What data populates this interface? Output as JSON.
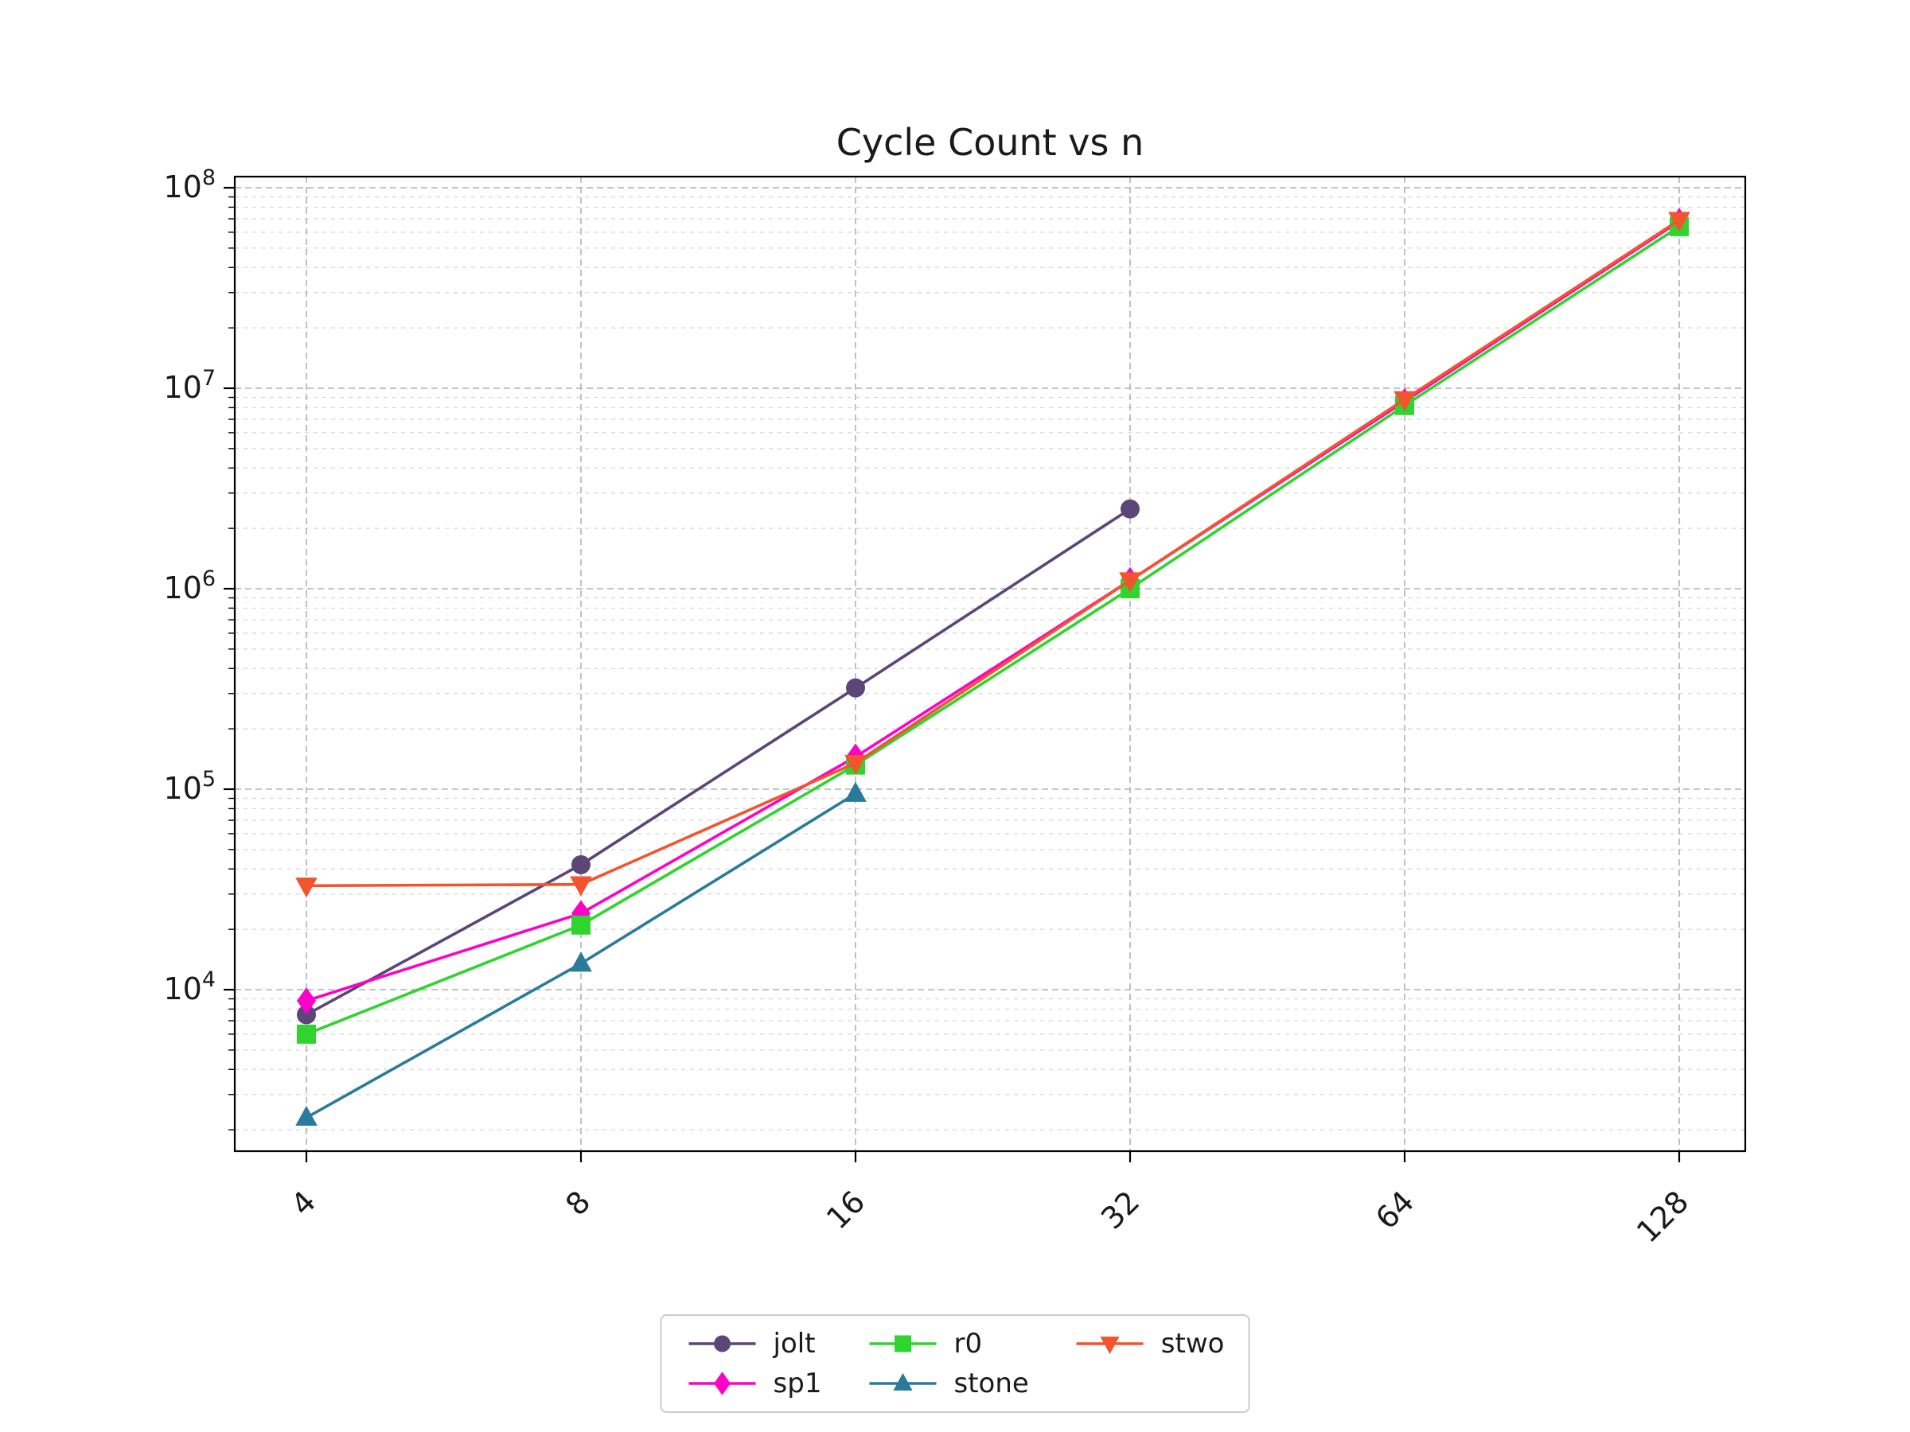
{
  "chart_data": {
    "type": "line",
    "title": "Cycle Count vs n",
    "x_scale": "log2",
    "y_scale": "log10",
    "x_tick_labels": [
      "4",
      "8",
      "16",
      "32",
      "64",
      "128"
    ],
    "x_tick_values": [
      4,
      8,
      16,
      32,
      64,
      128
    ],
    "y_tick_exponents": [
      4,
      5,
      6,
      7,
      8
    ],
    "grid": "dashed-major-and-minor",
    "legend_position": "lower-center",
    "series": [
      {
        "name": "jolt",
        "color": "#5c4577",
        "marker": "circle",
        "x": [
          4,
          8,
          16,
          32
        ],
        "y": [
          7500,
          42000,
          320000,
          2500000
        ]
      },
      {
        "name": "sp1",
        "color": "#ff00c8",
        "marker": "diamond",
        "x": [
          4,
          8,
          16,
          32,
          64,
          128
        ],
        "y": [
          8800,
          24000,
          145000,
          1100000,
          8600000,
          68000000
        ]
      },
      {
        "name": "r0",
        "color": "#2fd42f",
        "marker": "square",
        "x": [
          4,
          8,
          16,
          32,
          64,
          128
        ],
        "y": [
          6000,
          21000,
          132000,
          1000000,
          8200000,
          64000000
        ]
      },
      {
        "name": "stone",
        "color": "#2a7b9b",
        "marker": "triangle-up",
        "x": [
          4,
          8,
          16
        ],
        "y": [
          2300,
          13500,
          95000
        ]
      },
      {
        "name": "stwo",
        "color": "#f2542d",
        "marker": "triangle-down",
        "x": [
          4,
          8,
          16,
          32,
          64,
          128
        ],
        "y": [
          33000,
          33500,
          135000,
          1100000,
          8800000,
          69000000
        ]
      }
    ]
  },
  "colors": {
    "grid_major": "#b2b2b2",
    "grid_minor": "#d6d6d6",
    "axis": "#000000",
    "text": "#1a1a1a",
    "legend_border": "#cccccc"
  }
}
